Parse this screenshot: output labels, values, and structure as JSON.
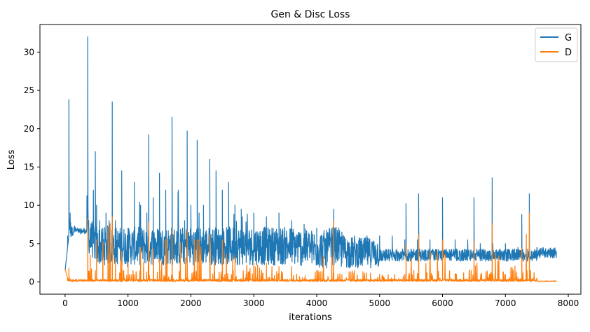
{
  "chart_data": {
    "type": "line",
    "title": "Gen & Disc Loss",
    "xlabel": "iterations",
    "ylabel": "Loss",
    "xlim": [
      -400,
      8200
    ],
    "ylim": [
      -1.6,
      33.6
    ],
    "x_ticks": [
      0,
      1000,
      2000,
      3000,
      4000,
      5000,
      6000,
      7000,
      8000
    ],
    "y_ticks": [
      0,
      5,
      10,
      15,
      20,
      25,
      30
    ],
    "grid": false,
    "legend": "top-right",
    "n_iterations": 7810,
    "series": [
      {
        "name": "G",
        "color": "#1f77b4",
        "x": [
          0,
          40,
          60,
          80,
          100,
          150,
          200,
          300,
          345,
          360,
          375,
          400,
          450,
          480,
          500,
          550,
          600,
          650,
          700,
          750,
          800,
          900,
          1000,
          1100,
          1200,
          1300,
          1330,
          1400,
          1500,
          1600,
          1700,
          1800,
          1900,
          1940,
          2000,
          2100,
          2130,
          2200,
          2300,
          2400,
          2500,
          2600,
          2700,
          2800,
          3000,
          3200,
          3400,
          3600,
          3800,
          4000,
          4200,
          4270,
          4400,
          4600,
          4800,
          5000,
          5200,
          5400,
          5420,
          5600,
          5620,
          5800,
          6000,
          6200,
          6400,
          6500,
          6600,
          6800,
          6790,
          7000,
          7200,
          7260,
          7380,
          7500,
          7600,
          7810
        ],
        "y": [
          1.5,
          6.0,
          23.8,
          9.0,
          7.2,
          7.3,
          7.0,
          7.0,
          7.0,
          32.0,
          8.0,
          7.0,
          12.0,
          17.0,
          10.0,
          8.0,
          7.0,
          9.0,
          8.0,
          23.5,
          8.0,
          14.5,
          7.0,
          13.0,
          10.0,
          9.0,
          19.2,
          11.0,
          14.2,
          12.0,
          21.5,
          12.0,
          8.0,
          19.7,
          10.0,
          18.5,
          9.0,
          10.0,
          16.0,
          14.5,
          12.0,
          13.0,
          10.0,
          9.5,
          9.0,
          8.5,
          9.0,
          8.0,
          7.5,
          7.0,
          7.0,
          9.5,
          6.5,
          6.0,
          6.0,
          6.0,
          6.0,
          5.5,
          10.2,
          5.5,
          11.5,
          5.5,
          11.0,
          5.5,
          5.5,
          11.0,
          5.0,
          5.0,
          13.6,
          5.0,
          4.5,
          8.8,
          11.5,
          4.5,
          4.5,
          4.0
        ],
        "envelope_low": [
          1.5,
          5.5,
          5.5,
          5.5,
          6.0,
          6.3,
          6.3,
          6.3,
          6.3,
          6.0,
          4.0,
          3.5,
          2.5,
          2.5,
          2.0,
          2.0,
          2.0,
          2.0,
          2.0,
          2.0,
          2.0,
          2.0,
          2.0,
          2.0,
          2.0,
          2.0,
          2.0,
          2.0,
          2.0,
          2.0,
          2.0,
          2.0,
          2.0,
          2.0,
          2.0,
          2.0,
          2.0,
          2.0,
          2.0,
          2.0,
          2.0,
          2.0,
          2.0,
          2.0,
          2.0,
          2.0,
          2.0,
          2.0,
          2.0,
          2.0,
          2.0,
          2.0,
          2.0,
          2.0,
          2.0,
          2.0,
          2.0,
          2.0,
          2.0,
          2.0,
          2.0,
          2.0,
          2.0,
          2.0,
          2.0,
          2.0,
          2.2,
          2.2,
          2.2,
          2.2,
          2.5,
          2.5,
          2.5,
          2.5,
          2.5,
          3.0
        ]
      },
      {
        "name": "D",
        "color": "#ff7f0e",
        "x": [
          0,
          40,
          60,
          80,
          100,
          200,
          345,
          360,
          380,
          400,
          480,
          500,
          750,
          800,
          900,
          1000,
          1200,
          1330,
          1500,
          1600,
          1700,
          1940,
          2100,
          2130,
          2300,
          2500,
          2700,
          3000,
          3200,
          3400,
          3600,
          4000,
          4270,
          4400,
          4600,
          5000,
          5400,
          5420,
          5600,
          5620,
          6000,
          6200,
          6500,
          6800,
          6790,
          7000,
          7260,
          7380,
          7500,
          7810
        ],
        "y": [
          1.7,
          0.5,
          1.8,
          0.4,
          0.1,
          0.1,
          0.1,
          8.3,
          1.0,
          3.5,
          1.5,
          5.5,
          8.5,
          3.0,
          4.0,
          2.5,
          4.5,
          7.8,
          3.0,
          5.5,
          6.7,
          6.7,
          5.5,
          5.5,
          6.2,
          5.5,
          3.5,
          2.5,
          2.5,
          2.0,
          2.0,
          1.5,
          8.0,
          1.0,
          1.5,
          1.0,
          1.0,
          4.8,
          1.0,
          6.2,
          5.5,
          1.0,
          5.3,
          1.0,
          7.6,
          1.0,
          4.4,
          9.0,
          0.5,
          0.1
        ],
        "baseline": 0.05
      }
    ]
  }
}
